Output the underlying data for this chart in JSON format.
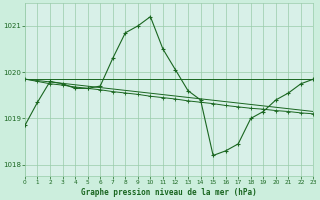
{
  "bg_color": "#cceedd",
  "plot_bg_color": "#d8f0e8",
  "grid_color": "#99ccaa",
  "line_color": "#1a6620",
  "title": "Graphe pression niveau de la mer (hPa)",
  "title_color": "#1a6620",
  "ylim": [
    1017.75,
    1021.5
  ],
  "yticks": [
    1018,
    1019,
    1020,
    1021
  ],
  "xlim": [
    0,
    23
  ],
  "xticks": [
    0,
    1,
    2,
    3,
    4,
    5,
    6,
    7,
    8,
    9,
    10,
    11,
    12,
    13,
    14,
    15,
    16,
    17,
    18,
    19,
    20,
    21,
    22,
    23
  ],
  "series1_x": [
    0,
    1,
    2,
    3,
    4,
    5,
    6,
    7,
    8,
    9,
    10,
    11,
    12,
    13,
    14,
    15,
    16,
    17,
    18,
    19,
    20,
    21,
    22,
    23
  ],
  "series1_y": [
    1018.85,
    1019.35,
    1019.8,
    1019.75,
    1019.65,
    1019.65,
    1019.7,
    1020.3,
    1020.85,
    1021.0,
    1021.2,
    1020.5,
    1020.05,
    1019.6,
    1019.4,
    1018.2,
    1018.3,
    1018.45,
    1019.0,
    1019.15,
    1019.4,
    1019.55,
    1019.75,
    1019.85
  ],
  "series2_x": [
    0,
    1,
    2,
    3,
    4,
    5,
    6,
    7,
    8,
    9,
    10,
    11,
    12,
    13,
    14,
    15,
    16,
    17,
    18,
    19,
    20,
    21,
    22,
    23
  ],
  "series2_y": [
    1019.85,
    1019.8,
    1019.75,
    1019.72,
    1019.68,
    1019.65,
    1019.62,
    1019.58,
    1019.55,
    1019.52,
    1019.48,
    1019.45,
    1019.42,
    1019.38,
    1019.35,
    1019.32,
    1019.28,
    1019.25,
    1019.22,
    1019.2,
    1019.17,
    1019.15,
    1019.12,
    1019.1
  ],
  "line3_x": [
    0,
    23
  ],
  "line3_y": [
    1019.85,
    1019.85
  ],
  "line4_x": [
    0,
    23
  ],
  "line4_y": [
    1019.85,
    1019.15
  ]
}
